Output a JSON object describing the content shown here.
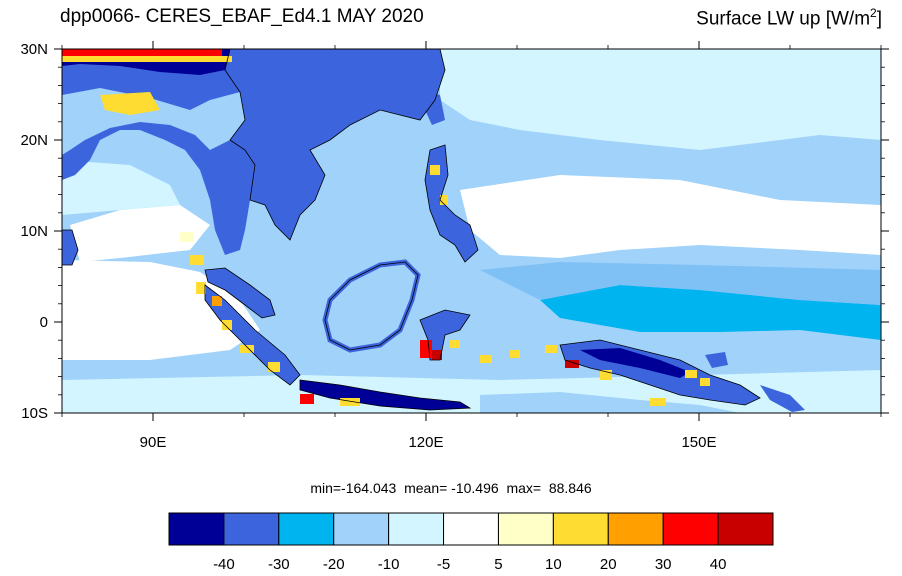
{
  "header": {
    "title_left": "dpp0066- CERES_EBAF_Ed4.1 MAY 2020",
    "title_right_main": "Surface LW up [W/m",
    "title_right_sup": "2",
    "title_right_end": "]"
  },
  "map": {
    "lon_range": [
      80,
      170
    ],
    "lat_range": [
      -10,
      30
    ],
    "lat_labels": [
      "30N",
      "20N",
      "10N",
      "0",
      "10S"
    ],
    "lat_values": [
      30,
      20,
      10,
      0,
      -10
    ],
    "lon_labels": [
      "90E",
      "120E",
      "150E"
    ],
    "lon_values": [
      90,
      120,
      150
    ],
    "ocean_bands": [
      {
        "level": "-10",
        "lat_range": [
          18,
          30
        ]
      },
      {
        "level": "-20",
        "lat_range": [
          8,
          18
        ]
      },
      {
        "level": "-5",
        "lat_range": [
          5,
          15
        ]
      },
      {
        "level": "-20",
        "lat_range": [
          -3,
          5
        ]
      },
      {
        "level": "-30",
        "lat_range": [
          -1,
          2
        ]
      },
      {
        "level": "-10",
        "lat_range": [
          -10,
          -3
        ]
      }
    ]
  },
  "stats": {
    "text": "min=-164.043  mean= -10.496  max=  88.846"
  },
  "colorbar": {
    "colors": [
      "#000096",
      "#3c64dc",
      "#00b4f0",
      "#a0d2fa",
      "#d2f5ff",
      "#ffffff",
      "#ffffc8",
      "#ffdc32",
      "#ffa000",
      "#ff0000",
      "#c80000"
    ],
    "labels": [
      "-40",
      "-30",
      "-20",
      "-10",
      "-5",
      "5",
      "10",
      "20",
      "30",
      "40"
    ]
  }
}
